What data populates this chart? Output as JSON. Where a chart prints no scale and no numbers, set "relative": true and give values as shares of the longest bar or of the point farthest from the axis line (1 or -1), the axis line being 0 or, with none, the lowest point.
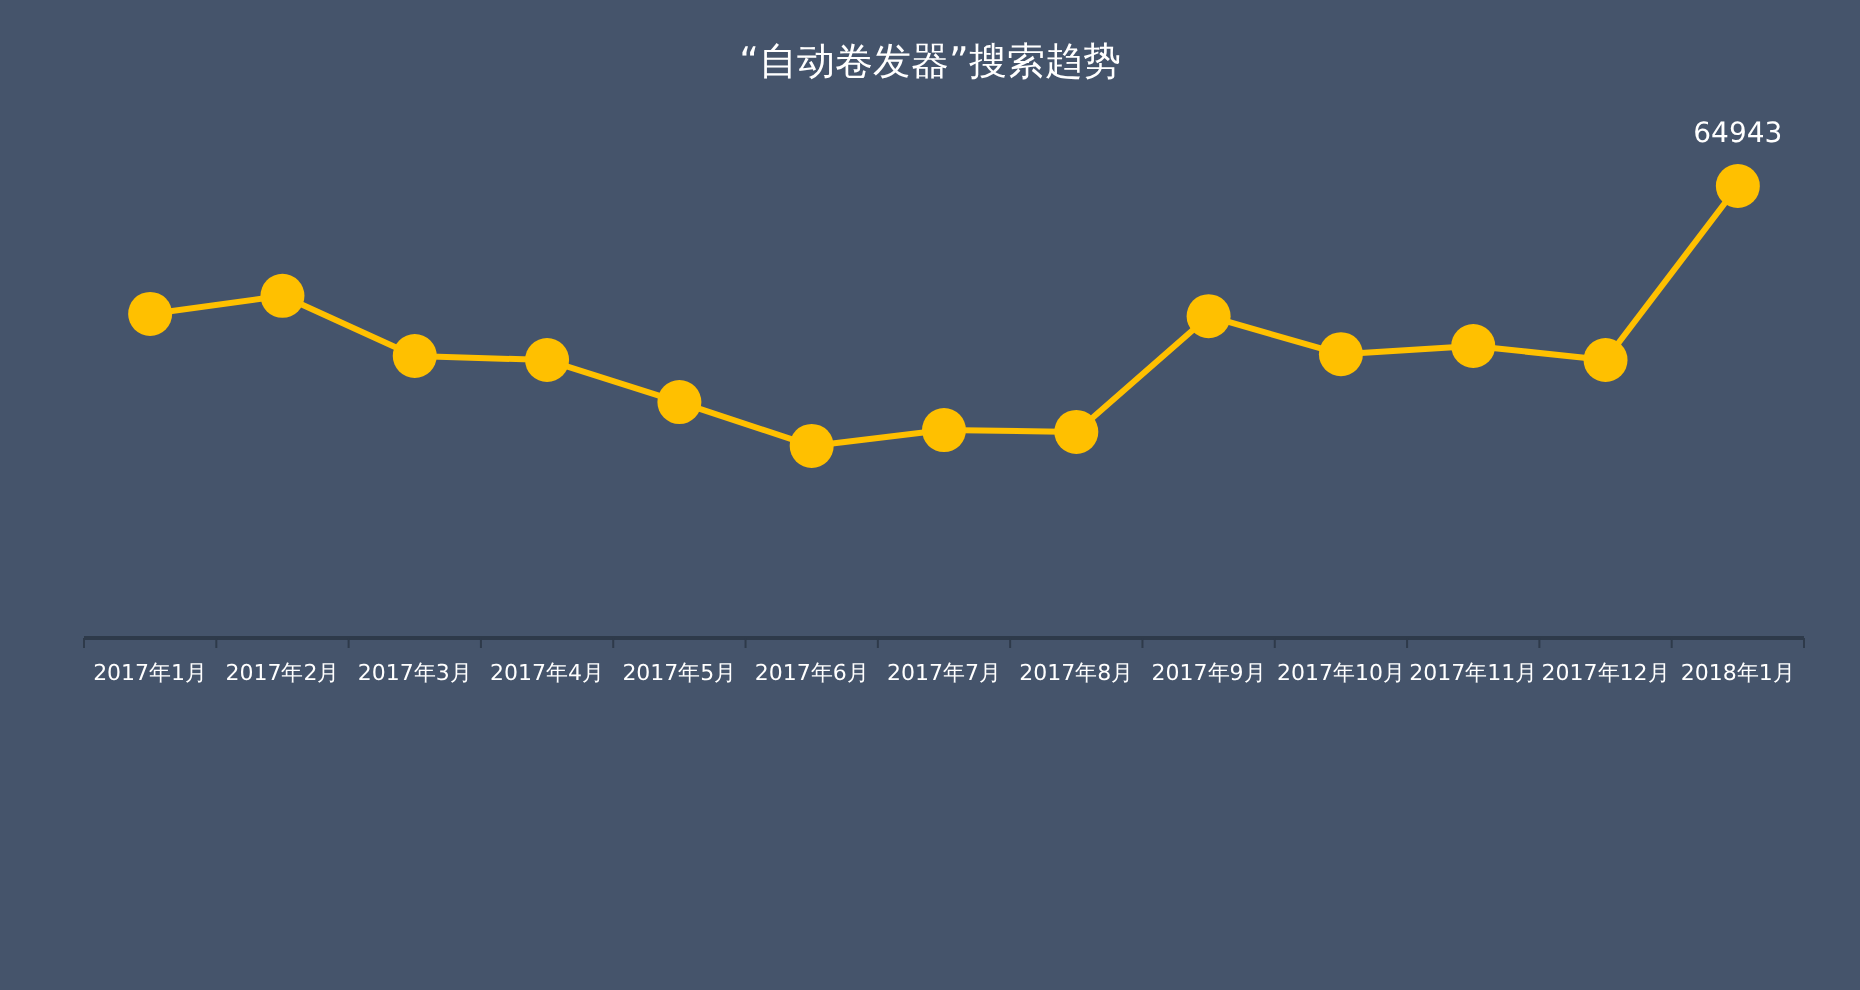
{
  "chart_data": {
    "type": "line",
    "title": "“自动卷发器”搜索趋势",
    "relative": true,
    "marker": "circle",
    "tick_labels": "x",
    "categories": [
      "2017年1月",
      "2017年2月",
      "2017年3月",
      "2017年4月",
      "2017年5月",
      "2017年6月",
      "2017年7月",
      "2017年8月",
      "2017年9月",
      "2017年10月",
      "2017年11月",
      "2017年12月",
      "2018年1月"
    ],
    "annotations": [
      {
        "text": "64943",
        "x": "2018年1月",
        "y": 1
      }
    ],
    "series": [
      {
        "color": "#ffc000",
        "values": [
          0.717,
          0.757,
          0.624,
          0.615,
          0.522,
          0.425,
          0.46,
          0.456,
          0.712,
          0.628,
          0.646,
          0.615,
          1
        ]
      }
    ]
  }
}
